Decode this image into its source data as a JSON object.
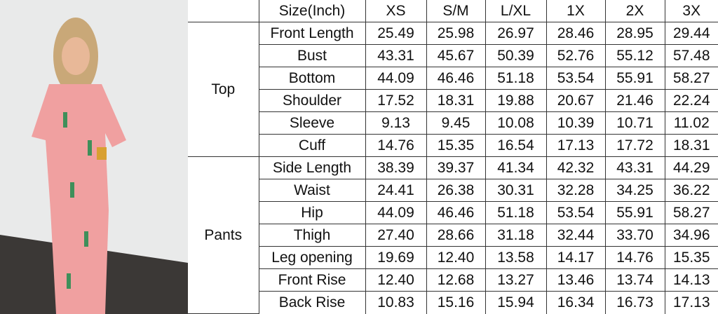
{
  "header": [
    "Size(Inch)",
    "XS",
    "S/M",
    "L/XL",
    "1X",
    "2X",
    "3X"
  ],
  "groups": [
    {
      "name": "Top",
      "rows": [
        {
          "label": "Front Length",
          "values": [
            "25.49",
            "25.98",
            "26.97",
            "28.46",
            "28.95",
            "29.44"
          ]
        },
        {
          "label": "Bust",
          "values": [
            "43.31",
            "45.67",
            "50.39",
            "52.76",
            "55.12",
            "57.48"
          ]
        },
        {
          "label": "Bottom",
          "values": [
            "44.09",
            "46.46",
            "51.18",
            "53.54",
            "55.91",
            "58.27"
          ]
        },
        {
          "label": "Shoulder",
          "values": [
            "17.52",
            "18.31",
            "19.88",
            "20.67",
            "21.46",
            "22.24"
          ]
        },
        {
          "label": "Sleeve",
          "values": [
            "9.13",
            "9.45",
            "10.08",
            "10.39",
            "10.71",
            "11.02"
          ]
        },
        {
          "label": "Cuff",
          "values": [
            "14.76",
            "15.35",
            "16.54",
            "17.13",
            "17.72",
            "18.31"
          ]
        }
      ]
    },
    {
      "name": "Pants",
      "rows": [
        {
          "label": "Side Length",
          "values": [
            "38.39",
            "39.37",
            "41.34",
            "42.32",
            "43.31",
            "44.29"
          ]
        },
        {
          "label": "Waist",
          "values": [
            "24.41",
            "26.38",
            "30.31",
            "32.28",
            "34.25",
            "36.22"
          ]
        },
        {
          "label": "Hip",
          "values": [
            "44.09",
            "46.46",
            "51.18",
            "53.54",
            "55.91",
            "58.27"
          ]
        },
        {
          "label": "Thigh",
          "values": [
            "27.40",
            "28.66",
            "31.18",
            "32.44",
            "33.70",
            "34.96"
          ]
        },
        {
          "label": "Leg opening",
          "values": [
            "19.69",
            "12.40",
            "13.58",
            "14.17",
            "14.76",
            "15.35"
          ]
        },
        {
          "label": "Front Rise",
          "values": [
            "12.40",
            "12.68",
            "13.27",
            "13.46",
            "13.74",
            "14.13"
          ]
        },
        {
          "label": "Back Rise",
          "values": [
            "10.83",
            "15.16",
            "15.94",
            "16.34",
            "16.73",
            "17.13"
          ]
        }
      ]
    }
  ],
  "colors": {
    "wall": "#e9eaea",
    "floor": "#3b3836",
    "pajama": "#f0a0a0",
    "hair": "#c9a878"
  }
}
